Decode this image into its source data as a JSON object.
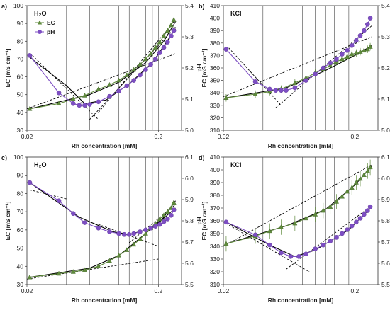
{
  "colors": {
    "ec": "#5f8a3c",
    "ph": "#7d4ec3",
    "line": "#000000",
    "grid": "#444444"
  },
  "chart_data": [
    {
      "type": "scatter",
      "panel_label": "a)",
      "inset_label": "H₂O",
      "xlabel": "Rh concentration [mM]",
      "ylabel_left": "EC [mS cm⁻¹]",
      "ylabel_right": "pH",
      "x_scale": "log",
      "xlim": [
        0.02,
        0.3
      ],
      "x_ticks": [
        {
          "v": 0.02,
          "label": "0.02"
        },
        {
          "v": 0.2,
          "label": "0.2"
        }
      ],
      "ylim_left": [
        30,
        100
      ],
      "yticks_left": [
        30,
        40,
        50,
        60,
        70,
        80,
        90,
        100
      ],
      "ylim_right": [
        5.0,
        5.4
      ],
      "yticks_right": [
        5.0,
        5.1,
        5.2,
        5.3,
        5.4
      ],
      "vlines": [
        0.04,
        0.06,
        0.08,
        0.1,
        0.12,
        0.14,
        0.16,
        0.18,
        0.2
      ],
      "legend": [
        {
          "label": "EC",
          "marker": "triangle"
        },
        {
          "label": "pH",
          "marker": "circle"
        }
      ],
      "series": [
        {
          "name": "EC",
          "axis": "left",
          "marker": "triangle",
          "x": [
            0.021,
            0.035,
            0.045,
            0.055,
            0.07,
            0.085,
            0.1,
            0.115,
            0.13,
            0.145,
            0.16,
            0.175,
            0.19,
            0.205,
            0.22,
            0.235,
            0.25,
            0.262
          ],
          "y": [
            42,
            45,
            47.5,
            49.5,
            53,
            55.5,
            58,
            61,
            64,
            67,
            70,
            73,
            76.5,
            79.5,
            83,
            86,
            89,
            92
          ]
        },
        {
          "name": "pH",
          "axis": "left",
          "marker": "circle",
          "x": [
            0.021,
            0.035,
            0.045,
            0.05,
            0.055,
            0.06,
            0.07,
            0.085,
            0.1,
            0.115,
            0.13,
            0.145,
            0.16,
            0.175,
            0.19,
            0.205,
            0.22,
            0.235,
            0.25,
            0.262
          ],
          "y": [
            72,
            51,
            45,
            44,
            44,
            44.5,
            46,
            49,
            52,
            55,
            58,
            61,
            64,
            67,
            70,
            73.5,
            76.5,
            79.5,
            83,
            86
          ]
        }
      ],
      "fit_lines": [
        {
          "style": "solid",
          "x": [
            0.021,
            0.06,
            0.1,
            0.16,
            0.22,
            0.27
          ],
          "y": [
            42,
            50,
            57,
            68,
            80,
            91
          ]
        },
        {
          "style": "solid",
          "x": [
            0.021,
            0.04,
            0.055,
            0.08,
            0.12,
            0.18,
            0.27
          ],
          "y": [
            71,
            55,
            45,
            47,
            56,
            68,
            87
          ]
        },
        {
          "style": "dashed",
          "x": [
            0.022,
            0.07
          ],
          "y": [
            72,
            36
          ]
        },
        {
          "style": "dashed",
          "x": [
            0.06,
            0.27
          ],
          "y": [
            36,
            88
          ]
        },
        {
          "style": "dashed",
          "x": [
            0.02,
            0.27
          ],
          "y": [
            42,
            73
          ]
        },
        {
          "style": "dashed",
          "x": [
            0.07,
            0.27
          ],
          "y": [
            40,
            92
          ]
        }
      ]
    },
    {
      "type": "scatter",
      "panel_label": "b)",
      "inset_label": "KCl",
      "xlabel": "Rh concentration [mM]",
      "ylabel_left": "EC [mS cm⁻¹]",
      "ylabel_right": "pH",
      "x_scale": "log",
      "xlim": [
        0.02,
        0.3
      ],
      "x_ticks": [
        {
          "v": 0.02,
          "label": "0.02"
        },
        {
          "v": 0.2,
          "label": "0.2"
        }
      ],
      "ylim_left": [
        310,
        410
      ],
      "yticks_left": [
        310,
        320,
        330,
        340,
        350,
        360,
        370,
        380,
        390,
        400,
        410
      ],
      "ylim_right": [
        5.0,
        5.4
      ],
      "yticks_right": [
        5.0,
        5.1,
        5.2,
        5.3,
        5.4
      ],
      "vlines": [
        0.04,
        0.06,
        0.08,
        0.1,
        0.12,
        0.14,
        0.16,
        0.18,
        0.2
      ],
      "series": [
        {
          "name": "EC",
          "axis": "left",
          "marker": "triangle",
          "error": 3,
          "x": [
            0.021,
            0.035,
            0.045,
            0.055,
            0.07,
            0.085,
            0.1,
            0.115,
            0.13,
            0.145,
            0.16,
            0.175,
            0.19,
            0.205,
            0.22,
            0.235,
            0.25,
            0.262
          ],
          "y": [
            336,
            339,
            341,
            343,
            348,
            352,
            356,
            359,
            362,
            365,
            367,
            369,
            371,
            372,
            373,
            374,
            375,
            377
          ]
        },
        {
          "name": "pH",
          "axis": "left",
          "marker": "circle",
          "x": [
            0.021,
            0.035,
            0.045,
            0.05,
            0.055,
            0.06,
            0.07,
            0.085,
            0.1,
            0.115,
            0.13,
            0.145,
            0.16,
            0.175,
            0.19,
            0.205,
            0.22,
            0.235,
            0.25,
            0.262
          ],
          "y": [
            375,
            349,
            343,
            342,
            342,
            342,
            344,
            350,
            355,
            360,
            364,
            367,
            371,
            374,
            378,
            382,
            386,
            390,
            395,
            400
          ]
        }
      ],
      "fit_lines": [
        {
          "style": "solid",
          "x": [
            0.021,
            0.06,
            0.12,
            0.2,
            0.27
          ],
          "y": [
            336,
            344,
            358,
            370,
            378
          ]
        },
        {
          "style": "dashed",
          "x": [
            0.022,
            0.055
          ],
          "y": [
            376,
            330
          ]
        },
        {
          "style": "dashed",
          "x": [
            0.05,
            0.27
          ],
          "y": [
            328,
            394
          ]
        },
        {
          "style": "dashed",
          "x": [
            0.02,
            0.27
          ],
          "y": [
            337,
            385
          ]
        }
      ]
    },
    {
      "type": "scatter",
      "panel_label": "c)",
      "inset_label": "H₂O",
      "xlabel": "Rh concentration [mM]",
      "ylabel_left": "EC [mS cm⁻¹]",
      "ylabel_right": "pH",
      "x_scale": "log",
      "xlim": [
        0.02,
        0.3
      ],
      "x_ticks": [
        {
          "v": 0.02,
          "label": "0.02"
        },
        {
          "v": 0.2,
          "label": "0.2"
        }
      ],
      "ylim_left": [
        30,
        100
      ],
      "yticks_left": [
        30,
        40,
        50,
        60,
        70,
        80,
        90,
        100
      ],
      "ylim_right": [
        5.5,
        6.1
      ],
      "yticks_right": [
        5.5,
        5.6,
        5.7,
        5.8,
        5.9,
        6.0,
        6.1
      ],
      "vlines": [
        0.04,
        0.06,
        0.08,
        0.1,
        0.12,
        0.14,
        0.16,
        0.18,
        0.2
      ],
      "series": [
        {
          "name": "EC",
          "axis": "left",
          "marker": "triangle",
          "x": [
            0.021,
            0.035,
            0.045,
            0.055,
            0.07,
            0.085,
            0.1,
            0.115,
            0.13,
            0.145,
            0.16,
            0.175,
            0.19,
            0.205,
            0.22,
            0.235,
            0.25,
            0.262
          ],
          "y": [
            34,
            36,
            37,
            38,
            40,
            43,
            46,
            49,
            52,
            55,
            58,
            61,
            63.5,
            66,
            68,
            70,
            72,
            75
          ]
        },
        {
          "name": "pH",
          "axis": "left",
          "marker": "circle",
          "x": [
            0.021,
            0.035,
            0.045,
            0.055,
            0.07,
            0.085,
            0.1,
            0.11,
            0.12,
            0.13,
            0.145,
            0.16,
            0.175,
            0.19,
            0.205,
            0.22,
            0.235,
            0.25,
            0.262
          ],
          "y": [
            86,
            76,
            69,
            64,
            61,
            59,
            58,
            57.5,
            57.5,
            58,
            59,
            60,
            61,
            62,
            63,
            64.5,
            66,
            68,
            71
          ]
        }
      ],
      "fit_lines": [
        {
          "style": "solid",
          "x": [
            0.021,
            0.06,
            0.1,
            0.16,
            0.22,
            0.27
          ],
          "y": [
            34,
            39,
            46,
            58,
            67,
            76
          ]
        },
        {
          "style": "solid",
          "x": [
            0.021,
            0.05,
            0.09,
            0.12,
            0.18,
            0.27
          ],
          "y": [
            86,
            67,
            59,
            57.5,
            61,
            72
          ]
        },
        {
          "style": "dashed",
          "x": [
            0.021,
            0.04
          ],
          "y": [
            82,
            77
          ]
        },
        {
          "style": "dashed",
          "x": [
            0.07,
            0.2
          ],
          "y": [
            63,
            51
          ]
        },
        {
          "style": "dashed",
          "x": [
            0.12,
            0.27
          ],
          "y": [
            53,
            74
          ]
        },
        {
          "style": "dashed",
          "x": [
            0.02,
            0.2
          ],
          "y": [
            33,
            44
          ]
        }
      ]
    },
    {
      "type": "scatter",
      "panel_label": "d)",
      "inset_label": "KCl",
      "xlabel": "Rh concentration [mM]",
      "ylabel_left": "EC [mS cm⁻¹]",
      "ylabel_right": "pH",
      "x_scale": "log",
      "xlim": [
        0.02,
        0.3
      ],
      "x_ticks": [
        {
          "v": 0.02,
          "label": "0.02"
        },
        {
          "v": 0.2,
          "label": "0.2"
        }
      ],
      "ylim_left": [
        310,
        410
      ],
      "yticks_left": [
        310,
        320,
        330,
        340,
        350,
        360,
        370,
        380,
        390,
        400,
        410
      ],
      "ylim_right": [
        5.5,
        6.1
      ],
      "yticks_right": [
        5.5,
        5.6,
        5.7,
        5.8,
        5.9,
        6.0,
        6.1
      ],
      "vlines": [
        0.04,
        0.06,
        0.08,
        0.1,
        0.12,
        0.14,
        0.16,
        0.18,
        0.2
      ],
      "series": [
        {
          "name": "EC",
          "axis": "left",
          "marker": "triangle",
          "error": 6,
          "x": [
            0.021,
            0.035,
            0.045,
            0.055,
            0.07,
            0.085,
            0.1,
            0.115,
            0.13,
            0.145,
            0.16,
            0.175,
            0.19,
            0.205,
            0.22,
            0.235,
            0.25,
            0.262
          ],
          "y": [
            342,
            348,
            352,
            355,
            358,
            362,
            365,
            368,
            371,
            375,
            379,
            383,
            386,
            390,
            393,
            396,
            399,
            402
          ]
        },
        {
          "name": "pH",
          "axis": "left",
          "marker": "circle",
          "x": [
            0.021,
            0.035,
            0.045,
            0.055,
            0.065,
            0.075,
            0.085,
            0.1,
            0.115,
            0.13,
            0.145,
            0.16,
            0.175,
            0.19,
            0.205,
            0.22,
            0.235,
            0.25,
            0.262
          ],
          "y": [
            359,
            349,
            341,
            335,
            332,
            332,
            334,
            338,
            341,
            344,
            347,
            350,
            353,
            356,
            359,
            362,
            365,
            368,
            371
          ]
        }
      ],
      "fit_lines": [
        {
          "style": "solid",
          "x": [
            0.021,
            0.06,
            0.12,
            0.2,
            0.27
          ],
          "y": [
            342,
            356,
            369,
            388,
            403
          ]
        },
        {
          "style": "solid",
          "x": [
            0.021,
            0.045,
            0.07,
            0.1,
            0.18,
            0.27
          ],
          "y": [
            359,
            341,
            332,
            337,
            353,
            371
          ]
        },
        {
          "style": "dashed",
          "x": [
            0.021,
            0.09
          ],
          "y": [
            358,
            320
          ]
        },
        {
          "style": "dashed",
          "x": [
            0.06,
            0.27
          ],
          "y": [
            322,
            372
          ]
        },
        {
          "style": "dashed",
          "x": [
            0.02,
            0.27
          ],
          "y": [
            340,
            404
          ]
        }
      ]
    }
  ]
}
